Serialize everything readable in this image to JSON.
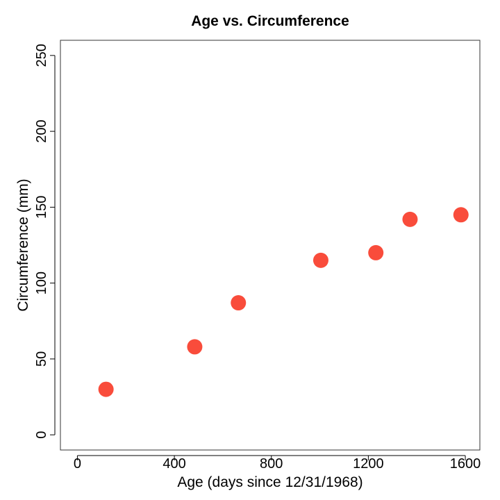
{
  "chart_data": {
    "type": "scatter",
    "title": "Age vs. Circumference",
    "xlabel": "Age (days since 12/31/1968)",
    "ylabel": "Circumference (mm)",
    "xlim": [
      -70,
      1660
    ],
    "ylim": [
      -10,
      260
    ],
    "xticks": [
      0,
      400,
      800,
      1200,
      1600
    ],
    "yticks": [
      0,
      50,
      100,
      150,
      200,
      250
    ],
    "x": [
      118,
      484,
      664,
      1004,
      1231,
      1372,
      1582
    ],
    "y": [
      30,
      58,
      87,
      115,
      120,
      142,
      145
    ],
    "point_color": "#F94C3B",
    "grid": false,
    "legend": "none"
  }
}
